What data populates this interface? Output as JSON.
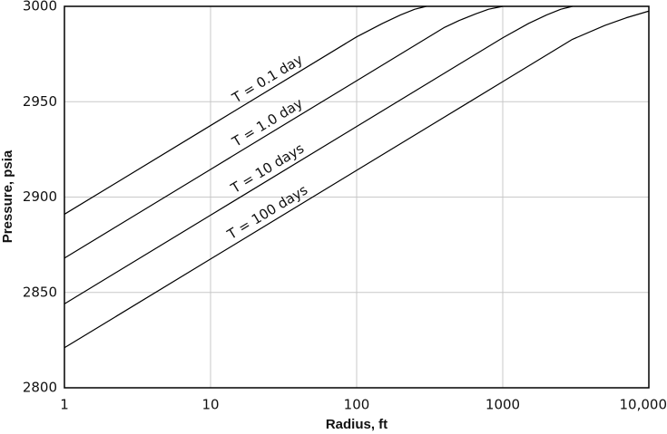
{
  "chart_data": {
    "type": "line",
    "xlabel": "Radius, ft",
    "ylabel": "Pressure, psia",
    "log_x": true,
    "grid": true,
    "xlim": [
      1,
      10000
    ],
    "xticks": [
      1,
      10,
      100,
      1000,
      {
        "value": 10000,
        "label": "10,000"
      }
    ],
    "ylim": [
      2800,
      3000
    ],
    "yticks": [
      2800,
      2850,
      2900,
      2950,
      3000
    ],
    "series": [
      {
        "name": "T = 0.1 day",
        "color": "#000000",
        "x": [
          1,
          10,
          100,
          150,
          200,
          250,
          300
        ],
        "values": [
          2891,
          2937.5,
          2984,
          2991,
          2995.5,
          2998.5,
          3000
        ]
      },
      {
        "name": "T = 1.0 day",
        "color": "#000000",
        "x": [
          1,
          10,
          100,
          400,
          500,
          650,
          800,
          1000
        ],
        "values": [
          2868,
          2914.5,
          2961,
          2989,
          2992.5,
          2996,
          2998.5,
          3000
        ]
      },
      {
        "name": "T = 10 days",
        "color": "#000000",
        "x": [
          1,
          10,
          100,
          1000,
          1500,
          2000,
          2500,
          3000
        ],
        "values": [
          2844,
          2890.5,
          2937,
          2983.5,
          2991,
          2995.5,
          2998.5,
          3000
        ]
      },
      {
        "name": "T = 100 days",
        "color": "#000000",
        "x": [
          1,
          10,
          100,
          1000,
          3000,
          5000,
          7000,
          10000
        ],
        "values": [
          2821,
          2867.5,
          2914,
          2960.5,
          2982.7,
          2990,
          2994,
          2997.5
        ]
      }
    ]
  }
}
